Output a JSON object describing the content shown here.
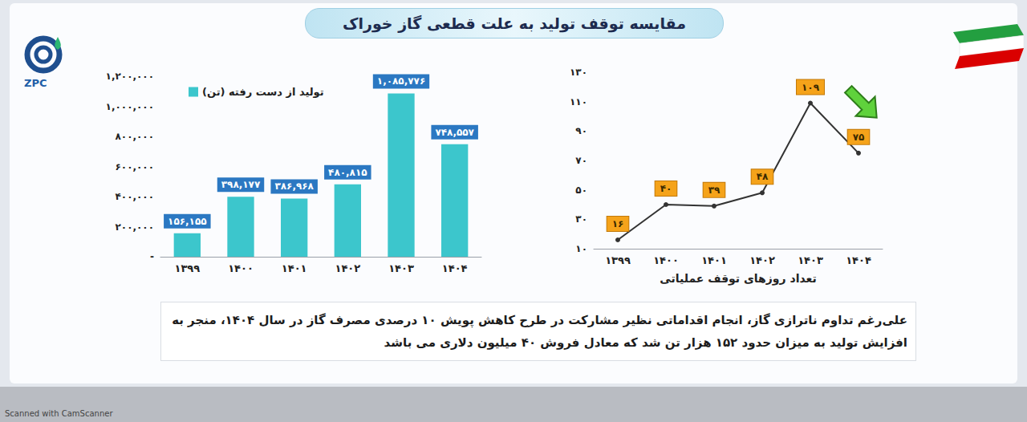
{
  "title": "مقایسه توقف تولید به علت قطعی گاز خوراک",
  "logo": "ZPC",
  "note": "علی‌رغم تداوم ناترازی گاز، انجام اقداماتی نظیر مشارکت در طرح کاهش پویش ۱۰ درصدی مصرف گاز در سال ۱۴۰۴، منجر به افزایش تولید به میزان حدود ۱۵۲ هزار تن شد که معادل فروش ۴۰ میلیون دلاری می باشد",
  "watermark": "Scanned with CamScanner",
  "chart_data": [
    {
      "type": "bar",
      "categories": [
        "۱۳۹۹",
        "۱۴۰۰",
        "۱۴۰۱",
        "۱۴۰۲",
        "۱۴۰۳",
        "۱۴۰۴"
      ],
      "series": [
        {
          "name": "تولید از دست رفته (تن)",
          "color": "#3cc6cc",
          "values": [
            156155,
            398177,
            386968,
            480815,
            1085776,
            748557
          ],
          "value_labels": [
            "۱۵۶,۱۵۵",
            "۳۹۸,۱۷۷",
            "۳۸۶,۹۶۸",
            "۴۸۰,۸۱۵",
            "۱,۰۸۵,۷۷۶",
            "۷۴۸,۵۵۷"
          ]
        }
      ],
      "ylim": [
        0,
        1200000
      ],
      "yticks": [
        {
          "value": 0,
          "label": "-"
        },
        {
          "value": 200000,
          "label": "۲۰۰,۰۰۰"
        },
        {
          "value": 400000,
          "label": "۴۰۰,۰۰۰"
        },
        {
          "value": 600000,
          "label": "۶۰۰,۰۰۰"
        },
        {
          "value": 800000,
          "label": "۸۰۰,۰۰۰"
        },
        {
          "value": 1000000,
          "label": "۱,۰۰۰,۰۰۰"
        },
        {
          "value": 1200000,
          "label": "۱,۲۰۰,۰۰۰"
        }
      ],
      "grid": false,
      "legend": "top",
      "data_labels": true
    },
    {
      "type": "line",
      "x_label": "تعداد روزهای توقف عملیاتی",
      "categories": [
        "۱۳۹۹",
        "۱۴۰۰",
        "۱۴۰۱",
        "۱۴۰۲",
        "۱۴۰۳",
        "۱۴۰۴"
      ],
      "values": [
        16,
        40,
        39,
        48,
        109,
        75
      ],
      "value_labels": [
        "۱۶",
        "۴۰",
        "۳۹",
        "۴۸",
        "۱۰۹",
        "۷۵"
      ],
      "color": "#333333",
      "marker": "circle",
      "ylim": [
        10,
        130
      ],
      "yticks": [
        {
          "value": 10,
          "label": "۱۰"
        },
        {
          "value": 30,
          "label": "۳۰"
        },
        {
          "value": 50,
          "label": "۵۰"
        },
        {
          "value": 70,
          "label": "۷۰"
        },
        {
          "value": 90,
          "label": "۹۰"
        },
        {
          "value": 110,
          "label": "۱۱۰"
        },
        {
          "value": 130,
          "label": "۱۳۰"
        }
      ],
      "grid": false,
      "data_labels": true
    }
  ]
}
